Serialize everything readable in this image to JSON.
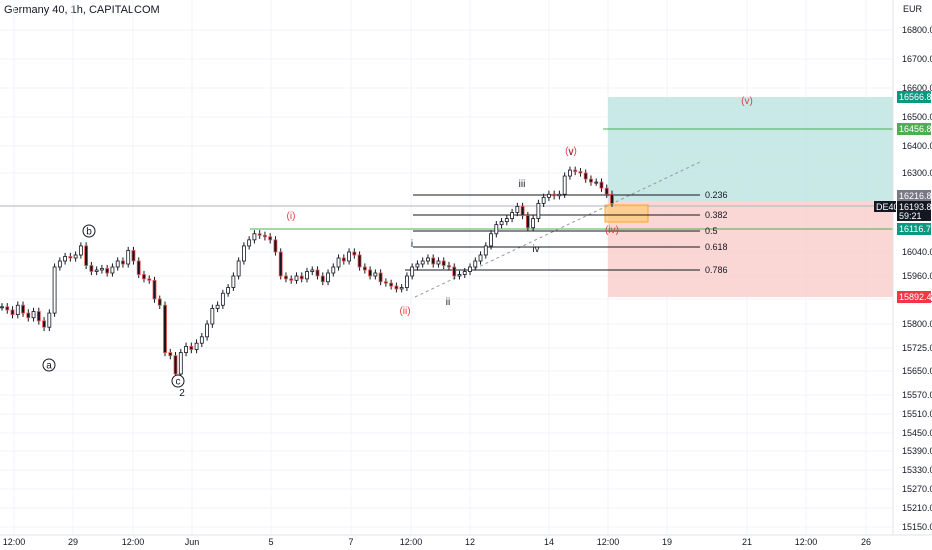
{
  "header": {
    "title": "Germany 40, 1h, CAPITALCOM"
  },
  "colors": {
    "up": "#26a69a",
    "down": "#ef5350",
    "candle": "#131722",
    "profit_zone": "#b2dfdb",
    "loss_zone": "#f8c9c6",
    "target_line": "#4caf50",
    "wave_red": "#e04040",
    "grid": "#f0f3fa"
  },
  "chart_data": {
    "type": "candlestick",
    "title": "Germany 40, 1h, CAPITALCOM",
    "currency": "EUR",
    "y_range": [
      15120,
      16900
    ],
    "y_ticks": [
      "16800.0",
      "16700.0",
      "16600.0",
      "16500.0",
      "16400.0",
      "16300.0",
      "16040.0",
      "15960.0",
      "15880.0",
      "15800.0",
      "15725.0",
      "15650.0",
      "15570.0",
      "15510.0",
      "15450.0",
      "15390.0",
      "15330.0",
      "15270.0",
      "15210.0",
      "15150.0"
    ],
    "y_tick_values": [
      16800,
      16700,
      16600,
      16500,
      16400,
      16300,
      16040,
      15960,
      15880,
      15800,
      15725,
      15650,
      15570,
      15510,
      15450,
      15390,
      15330,
      15270,
      15210,
      15150
    ],
    "x_ticks": [
      "12:00",
      "29",
      "12:00",
      "Jun",
      "5",
      "7",
      "12:00",
      "12",
      "14",
      "12:00",
      "19",
      "21",
      "12:00",
      "26"
    ],
    "price_badges": {
      "take_profit": "16566.8",
      "target_2": "16456.8",
      "entry_ref": "16216.8",
      "last_price": "16193.8",
      "countdown": "59:21",
      "symbol": "DE40",
      "level_05": "16116.7",
      "stop_loss": "15892.4"
    },
    "fib_levels": [
      {
        "label": "0.236",
        "value": 16200
      },
      {
        "label": "0.382",
        "value": 16155
      },
      {
        "label": "0.5",
        "value": 16112
      },
      {
        "label": "0.618",
        "value": 16058
      },
      {
        "label": "0.786",
        "value": 15975
      }
    ],
    "wave_labels": {
      "a": "a",
      "b": "b",
      "c": "c",
      "two": "2",
      "i_red": "(i)",
      "ii_red": "(ii)",
      "iii_sub": "iii",
      "iv_sub": "iv",
      "i_sub": "i",
      "ii_sub": "ii",
      "v_sub": "v",
      "v_red": "(v)",
      "iv_red": "(iv)",
      "v_red_top": "(v)"
    },
    "series_close_path": [
      15855,
      15845,
      15830,
      15860,
      15835,
      15820,
      15840,
      15810,
      15790,
      15835,
      15990,
      16010,
      16025,
      16020,
      16030,
      16060,
      15995,
      15975,
      15980,
      15985,
      15970,
      15990,
      16010,
      16000,
      16045,
      16010,
      15965,
      15950,
      15945,
      15880,
      15860,
      15710,
      15700,
      15640,
      15710,
      15730,
      15720,
      15740,
      15760,
      15800,
      15850,
      15860,
      15900,
      15920,
      15960,
      16010,
      16060,
      16080,
      16100,
      16095,
      16090,
      16080,
      16040,
      15960,
      15950,
      15945,
      15960,
      15950,
      15975,
      15980,
      15960,
      15940,
      15970,
      15990,
      16020,
      16010,
      16040,
      16030,
      15990,
      15980,
      15960,
      15970,
      15940,
      15935,
      15925,
      15915,
      15920,
      15960,
      15990,
      16000,
      16010,
      16020,
      16000,
      16010,
      15995,
      15990,
      15960,
      15965,
      15975,
      15990,
      16010,
      16030,
      16060,
      16100,
      16130,
      16140,
      16150,
      16170,
      16190,
      16160,
      16120,
      16150,
      16200,
      16220,
      16230,
      16225,
      16230,
      16290,
      16310,
      16305,
      16300,
      16280,
      16270,
      16270,
      16250,
      16230,
      16200
    ]
  }
}
